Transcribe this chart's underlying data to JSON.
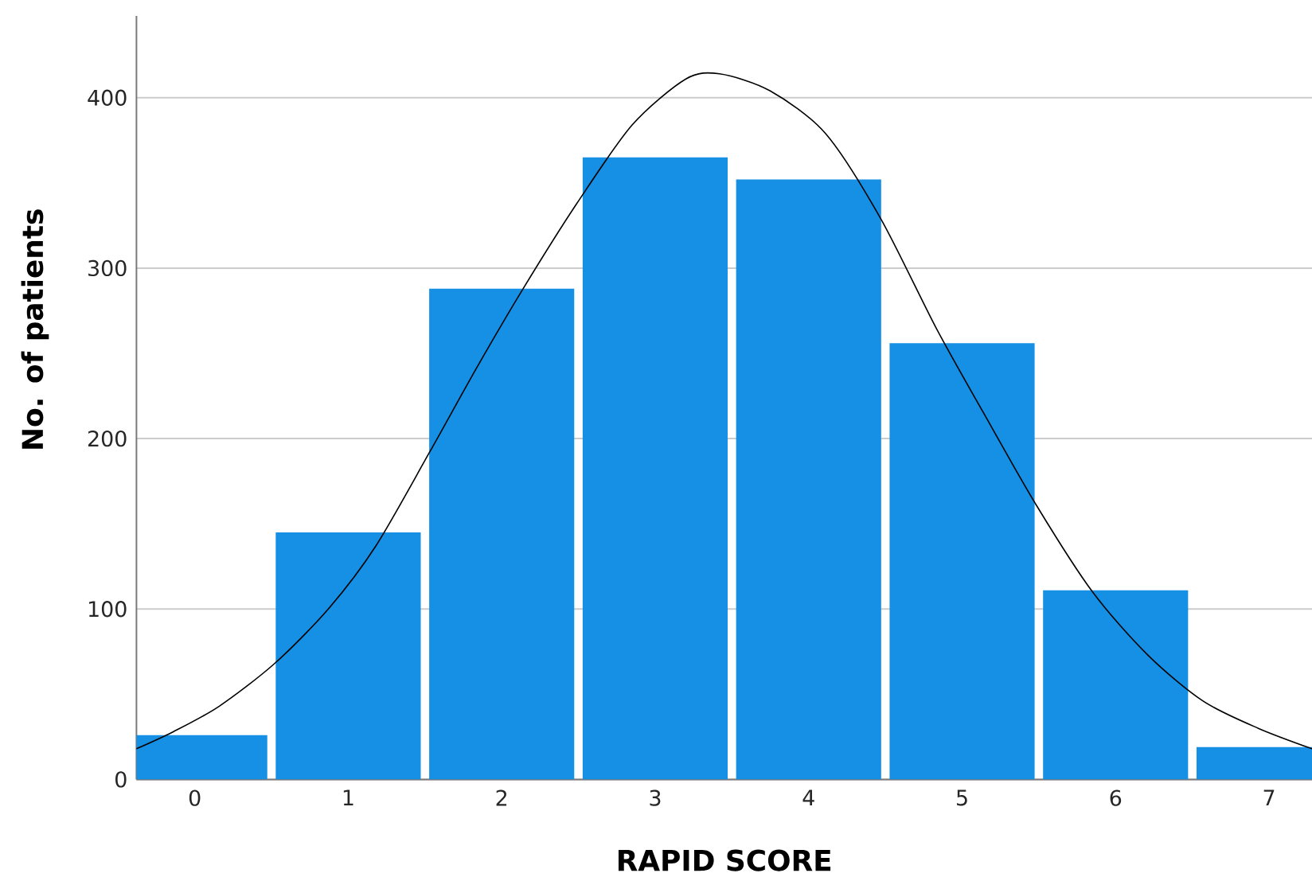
{
  "chart_data": {
    "type": "bar",
    "xlabel": "RAPID SCORE",
    "ylabel": "No. of patients",
    "x": [
      0,
      1,
      2,
      3,
      4,
      5,
      6,
      7
    ],
    "series": [
      {
        "color": "#1590e5",
        "values": [
          26,
          145,
          288,
          365,
          352,
          256,
          111,
          19
        ]
      },
      {
        "type": "line",
        "color": "#000000",
        "x": [
          -0.38,
          -0.14,
          0.16,
          0.52,
          0.87,
          1.18,
          1.53,
          1.84,
          2.14,
          2.49,
          2.85,
          3.2,
          3.42,
          3.75,
          4.11,
          4.47,
          4.83,
          5.14,
          5.49,
          5.85,
          6.21,
          6.57,
          6.93,
          7.28
        ],
        "values": [
          18,
          28,
          43,
          68,
          100,
          137,
          192,
          242,
          288,
          338,
          384,
          411,
          414,
          404,
          379,
          329,
          265,
          215,
          160,
          110,
          73,
          46,
          30,
          18
        ]
      }
    ],
    "xlim": [
      -0.38,
      7.28
    ],
    "xticks": [
      0,
      1,
      2,
      3,
      4,
      5,
      6,
      7
    ],
    "ylim": [
      0,
      448
    ],
    "yticks": [
      0,
      100,
      200,
      300,
      400
    ],
    "grid": "y"
  }
}
